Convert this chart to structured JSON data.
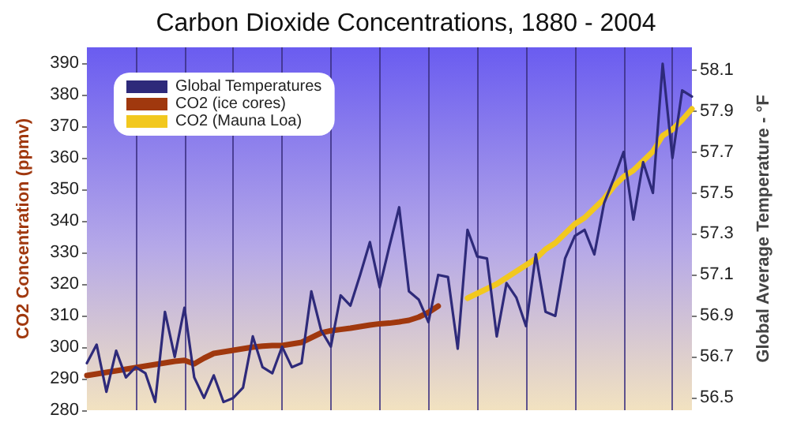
{
  "chart_data": {
    "type": "line",
    "title": "Carbon Dioxide Concentrations, 1880 - 2004",
    "ylabel": "CO2 Concentration (ppmv)",
    "y2label": "Global Average Temperature - °F",
    "categories": [
      null,
      null,
      null,
      null,
      null,
      null,
      null,
      null,
      null,
      null,
      null,
      null,
      null,
      null,
      null,
      null,
      null,
      null,
      null,
      null,
      null,
      null,
      null,
      null,
      null,
      null,
      null,
      null,
      null,
      null,
      null,
      null,
      null,
      null,
      null,
      null,
      null,
      null,
      null,
      null,
      null,
      null,
      null,
      null,
      null,
      null,
      null,
      null,
      null,
      null,
      null,
      null,
      null,
      null,
      null,
      null,
      null,
      null,
      null,
      null,
      null,
      null,
      null
    ],
    "ylim": [
      280,
      395
    ],
    "yticks": [
      280,
      290,
      300,
      310,
      320,
      330,
      340,
      350,
      360,
      370,
      380,
      390
    ],
    "y2lim": [
      56.44,
      58.21
    ],
    "y2ticks": [
      56.5,
      56.7,
      56.9,
      57.1,
      57.3,
      57.5,
      57.7,
      57.9,
      58.1
    ],
    "grid": "x",
    "legend": "top left",
    "line_style": "solid",
    "tick_labels": "y",
    "series": [
      {
        "name": "Global Temperatures",
        "color": "#2e2a7a",
        "axis": "y2",
        "values": [
          56.67,
          56.76,
          56.53,
          56.73,
          56.6,
          56.65,
          56.62,
          56.48,
          56.92,
          56.7,
          56.94,
          56.6,
          56.5,
          56.61,
          56.48,
          56.5,
          56.55,
          56.8,
          56.65,
          56.62,
          56.75,
          56.65,
          56.67,
          57.02,
          56.83,
          56.75,
          57.0,
          56.95,
          57.1,
          57.26,
          57.04,
          57.24,
          57.43,
          57.02,
          56.98,
          56.87,
          57.1,
          57.09,
          56.74,
          57.32,
          57.19,
          57.18,
          56.8,
          57.06,
          56.99,
          56.85,
          57.2,
          56.92,
          56.9,
          57.18,
          57.29,
          57.32,
          57.2,
          57.45,
          57.57,
          57.7,
          57.37,
          57.65,
          57.5,
          58.13,
          57.67,
          58.0,
          57.97
        ]
      },
      {
        "name": "CO2 (ice cores)",
        "color": "#a0380e",
        "values": [
          291,
          291.5,
          292,
          292.5,
          293,
          293.5,
          294,
          294.5,
          295,
          295.5,
          295.8,
          294.7,
          296.5,
          298,
          298.5,
          299,
          299.5,
          300,
          300.3,
          300.5,
          300.5,
          301,
          301.5,
          303,
          304.5,
          305.2,
          305.6,
          306,
          306.5,
          307,
          307.4,
          307.6,
          308,
          308.5,
          309.5,
          311,
          313,
          null,
          null,
          null,
          null,
          null,
          null,
          null,
          null,
          null,
          null,
          null,
          null,
          null,
          null,
          null,
          null,
          null,
          null,
          null,
          null,
          null,
          null,
          null,
          null,
          null,
          null
        ]
      },
      {
        "name": "CO2 (Mauna Loa)",
        "color": "#f2c81e",
        "values": [
          null,
          null,
          null,
          null,
          null,
          null,
          null,
          null,
          null,
          null,
          null,
          null,
          null,
          null,
          null,
          null,
          null,
          null,
          null,
          null,
          null,
          null,
          null,
          null,
          null,
          null,
          null,
          null,
          null,
          null,
          null,
          null,
          null,
          null,
          null,
          null,
          null,
          null,
          null,
          315.5,
          317,
          318.5,
          320,
          322,
          324,
          326,
          328,
          331,
          333,
          336,
          339,
          341,
          344,
          347,
          351,
          354,
          356,
          359,
          362,
          367,
          369,
          372,
          375.5
        ]
      }
    ]
  }
}
